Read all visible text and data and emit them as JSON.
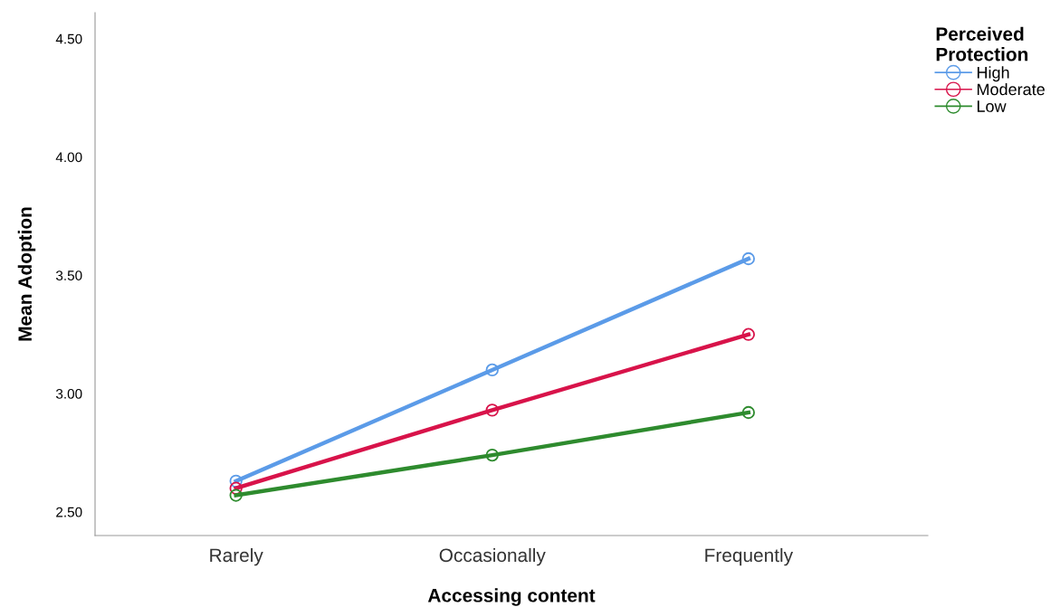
{
  "chart_data": {
    "type": "line",
    "xlabel": "Accessing content",
    "ylabel": "Mean Adoption",
    "legend_title": "Perceived\nProtection",
    "categories": [
      "Rarely",
      "Occasionally",
      "Frequently"
    ],
    "series": [
      {
        "name": "High",
        "color": "#5b9be8",
        "values": [
          2.63,
          3.1,
          3.57
        ]
      },
      {
        "name": "Moderate",
        "color": "#d8134a",
        "values": [
          2.6,
          2.93,
          3.25
        ]
      },
      {
        "name": "Low",
        "color": "#2e8b2e",
        "values": [
          2.57,
          2.74,
          2.92
        ]
      }
    ],
    "ylim": [
      2.4,
      4.61
    ],
    "yticks": [
      {
        "value": 2.5,
        "label": "2.50"
      },
      {
        "value": 3.0,
        "label": "3.00"
      },
      {
        "value": 3.5,
        "label": "3.50"
      },
      {
        "value": 4.0,
        "label": "4.00"
      },
      {
        "value": 4.5,
        "label": "4.50"
      }
    ],
    "grid": false,
    "legend": "top right",
    "marker": "circle",
    "line_style": "solid"
  }
}
